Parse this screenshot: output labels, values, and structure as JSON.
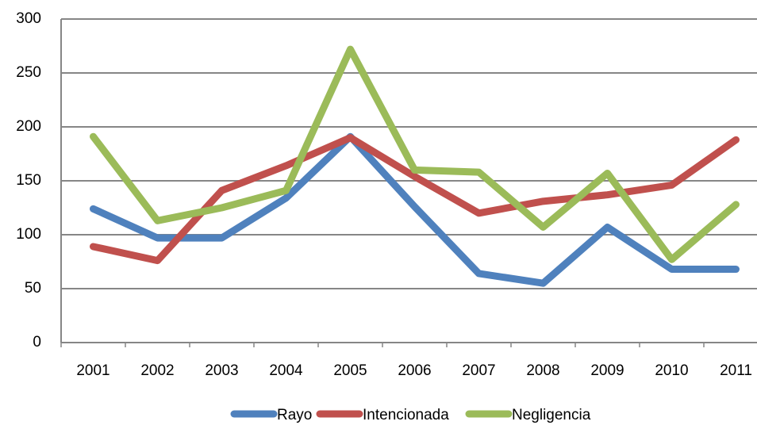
{
  "chart_data": {
    "type": "line",
    "categories": [
      "2001",
      "2002",
      "2003",
      "2004",
      "2005",
      "2006",
      "2007",
      "2008",
      "2009",
      "2010",
      "2011"
    ],
    "series": [
      {
        "name": "Rayo",
        "color": "#4f81bd",
        "values": [
          124,
          97,
          97,
          134,
          191,
          126,
          64,
          55,
          107,
          68,
          68
        ]
      },
      {
        "name": "Intencionada",
        "color": "#c0504d",
        "values": [
          89,
          76,
          141,
          164,
          190,
          154,
          120,
          131,
          137,
          146,
          188
        ]
      },
      {
        "name": "Negligencia",
        "color": "#9bbb59",
        "values": [
          191,
          113,
          125,
          141,
          272,
          160,
          158,
          107,
          157,
          77,
          128
        ]
      }
    ],
    "ylim": [
      0,
      300
    ],
    "yticks": [
      0,
      50,
      100,
      150,
      200,
      250,
      300
    ],
    "grid": true,
    "legend": "bottom"
  }
}
